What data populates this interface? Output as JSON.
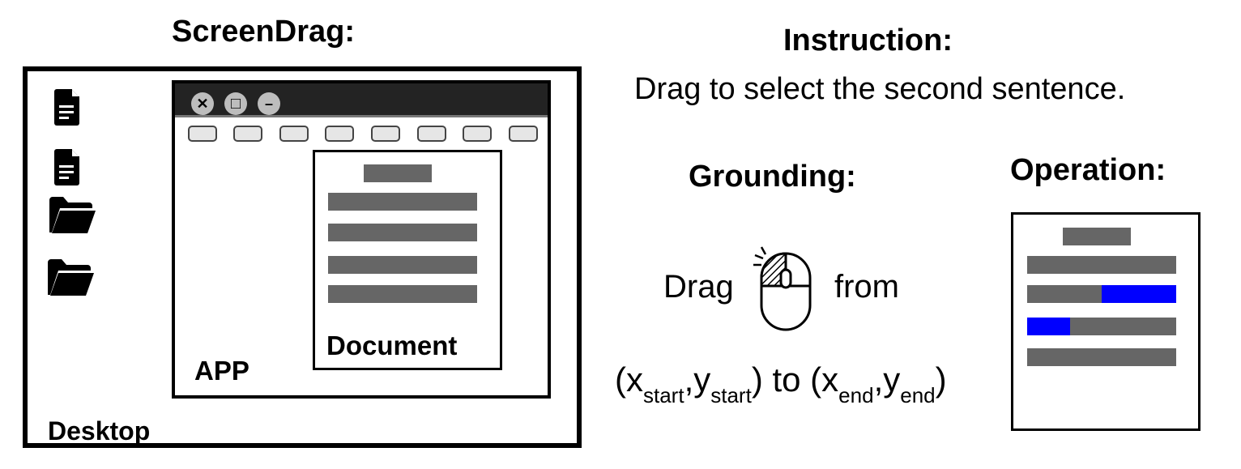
{
  "headings": {
    "screendrag": "ScreenDrag:",
    "instruction": "Instruction:",
    "grounding": "Grounding:",
    "operation": "Operation:"
  },
  "instruction_text": "Drag to select the second sentence.",
  "desktop": {
    "label": "Desktop",
    "icons": [
      "document-icon",
      "document-icon",
      "folder-icon",
      "folder-icon"
    ]
  },
  "app": {
    "label": "APP",
    "window_buttons": [
      {
        "name": "close-icon",
        "glyph": "✕"
      },
      {
        "name": "maximize-icon",
        "glyph": "□"
      },
      {
        "name": "minimize-icon",
        "glyph": "–"
      }
    ],
    "toolbar_button_count": 8
  },
  "document": {
    "label": "Document"
  },
  "grounding": {
    "word_drag": "Drag",
    "word_from": "from",
    "mouse_icon": "mouse-icon",
    "paren_open": "(",
    "x_var": "x",
    "start_sub": "start",
    "comma": ",",
    "y_var": "y",
    "paren_close_to": ") to (",
    "end_sub": "end",
    "paren_close": ")"
  },
  "colors": {
    "line_gray": "#666666",
    "selection_blue": "#0000ff",
    "titlebar": "#232323"
  }
}
